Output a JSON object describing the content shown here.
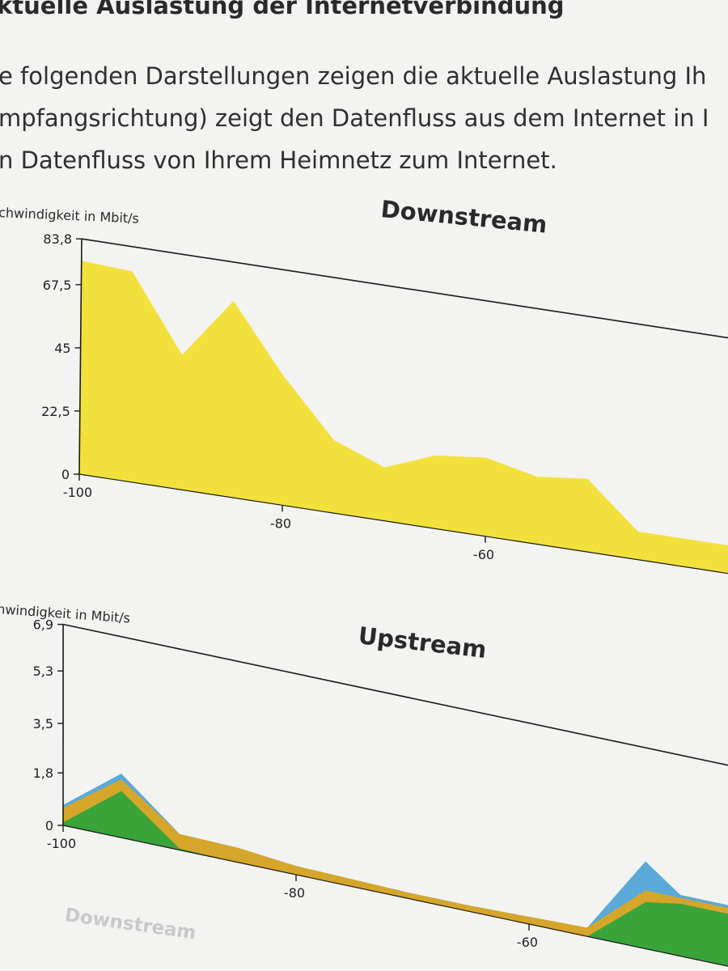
{
  "page": {
    "heading": "ktuelle Auslastung der Internetverbindung",
    "intro_lines": [
      "e folgenden Darstellungen zeigen die aktuelle Auslastung Ih",
      "mpfangsrichtung) zeigt den Datenfluss aus dem Internet in I",
      "n Datenfluss von Ihrem Heimnetz zum Internet."
    ],
    "footer_tab": "Downstream"
  },
  "chart_data": [
    {
      "type": "area",
      "title": "Downstream",
      "ylabel": "chwindigkeit in Mbit/s",
      "ylim": [
        0,
        83.8
      ],
      "y_ticks": [
        "83,8",
        "67,5",
        "45",
        "22,5",
        "0"
      ],
      "x_ticks": [
        "-100",
        "-80",
        "-60"
      ],
      "grid": false,
      "colors": {
        "fill": "#f2e13c",
        "axis": "#1a1a1a"
      },
      "series": [
        {
          "x": [
            -100,
            -95,
            -90,
            -85,
            -80,
            -75,
            -70,
            -65,
            -60,
            -55,
            -50,
            -45
          ],
          "values": [
            76,
            75,
            48,
            70,
            46,
            26,
            19,
            26,
            28,
            24,
            26,
            10
          ]
        }
      ]
    },
    {
      "type": "area",
      "title": "Upstream",
      "ylabel": "nwindigkeit in Mbit/s",
      "ylim": [
        0,
        6.9
      ],
      "y_ticks": [
        "6,9",
        "5,3",
        "3,5",
        "1,8",
        "0"
      ],
      "x_ticks": [
        "-100",
        "-80",
        "-60"
      ],
      "grid": false,
      "colors": {
        "axis": "#1a1a1a"
      },
      "series": [
        {
          "color": "#5aa9d8",
          "x": [
            -100,
            -95,
            -90,
            -85,
            -80,
            -75,
            -70,
            -65,
            -60,
            -55,
            -50,
            -47
          ],
          "values": [
            0.7,
            2.2,
            0.55,
            0.5,
            0.3,
            0.25,
            0.2,
            0.2,
            0.25,
            0.3,
            3.0,
            2.1
          ]
        },
        {
          "color": "#d6a62a",
          "x": [
            -100,
            -95,
            -90,
            -85,
            -80,
            -75,
            -70,
            -65,
            -60,
            -55,
            -50,
            -47
          ],
          "values": [
            0.6,
            2.0,
            0.55,
            0.5,
            0.3,
            0.25,
            0.2,
            0.2,
            0.25,
            0.3,
            2.0,
            2.0
          ]
        },
        {
          "color": "#3aa43a",
          "x": [
            -100,
            -95,
            -90,
            -85,
            -80,
            -75,
            -70,
            -65,
            -60,
            -55,
            -50,
            -47
          ],
          "values": [
            0.1,
            1.6,
            0.05,
            0,
            0,
            0,
            0,
            0,
            0,
            0,
            1.6,
            1.8
          ]
        }
      ]
    }
  ]
}
